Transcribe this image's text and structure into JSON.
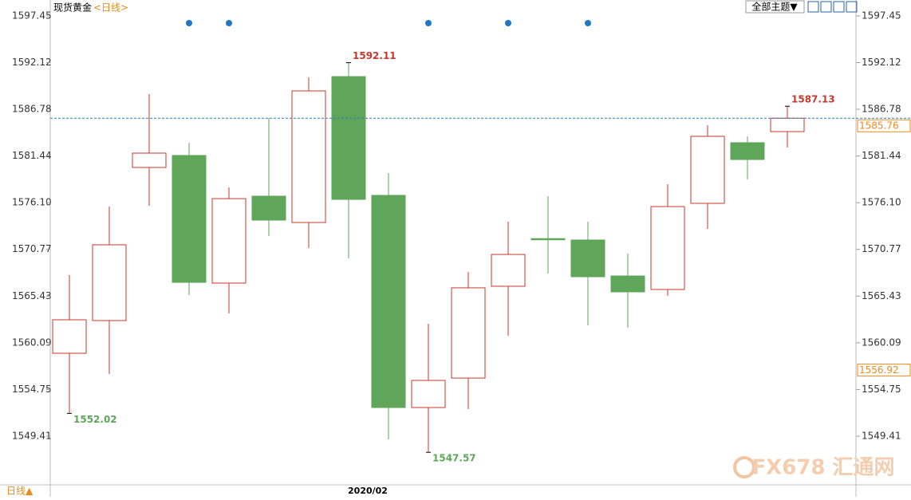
{
  "header": {
    "instrument": "现货黄金",
    "period": "<日线>",
    "menu": "全部主题▼"
  },
  "footer": {
    "period": "日线▲",
    "date_label": "2020/02"
  },
  "watermark": "FX678 汇通网",
  "chart_data": {
    "type": "candlestick",
    "categories": [
      null,
      null,
      null,
      null,
      null,
      null,
      null,
      null,
      null,
      null,
      null,
      null,
      null,
      null,
      null,
      null,
      null,
      null,
      null
    ],
    "open": [
      1558.89,
      1562.63,
      1580.13,
      1581.5,
      1566.91,
      1576.85,
      1573.84,
      1590.52,
      1576.94,
      1552.69,
      1556.06,
      1566.55,
      1572.0,
      1571.84,
      1567.73,
      1566.18,
      1576.03,
      1582.96,
      1584.23
    ],
    "high": [
      1567.82,
      1575.66,
      1588.52,
      1582.96,
      1577.85,
      1585.78,
      1590.43,
      1592.11,
      1579.49,
      1562.26,
      1568.19,
      1573.93,
      1576.85,
      1573.93,
      1570.29,
      1578.22,
      1584.96,
      1583.69,
      1587.13
    ],
    "low": [
      1552.02,
      1556.52,
      1575.75,
      1565.54,
      1563.45,
      1572.29,
      1570.92,
      1569.74,
      1549.05,
      1547.57,
      1552.51,
      1560.9,
      1568.01,
      1562.08,
      1561.81,
      1565.45,
      1573.11,
      1578.76,
      1582.41
    ],
    "close": [
      1562.72,
      1571.29,
      1581.77,
      1567.0,
      1576.57,
      1574.11,
      1588.88,
      1576.48,
      1552.69,
      1555.79,
      1566.37,
      1570.19,
      1571.9,
      1567.64,
      1565.91,
      1575.66,
      1583.69,
      1581.04,
      1585.76
    ],
    "up_color": "#c8372d",
    "down_color": "#5fa65a",
    "last_price": 1585.76,
    "marker_price": 1556.92,
    "ylim": [
      1543.85,
      1597.45
    ],
    "yticks": [
      1549.41,
      1554.75,
      1560.09,
      1565.43,
      1570.77,
      {
        "value": 1576.1,
        "label": "1576.10"
      },
      1581.44,
      1586.78,
      1592.12,
      1597.45
    ]
  }
}
